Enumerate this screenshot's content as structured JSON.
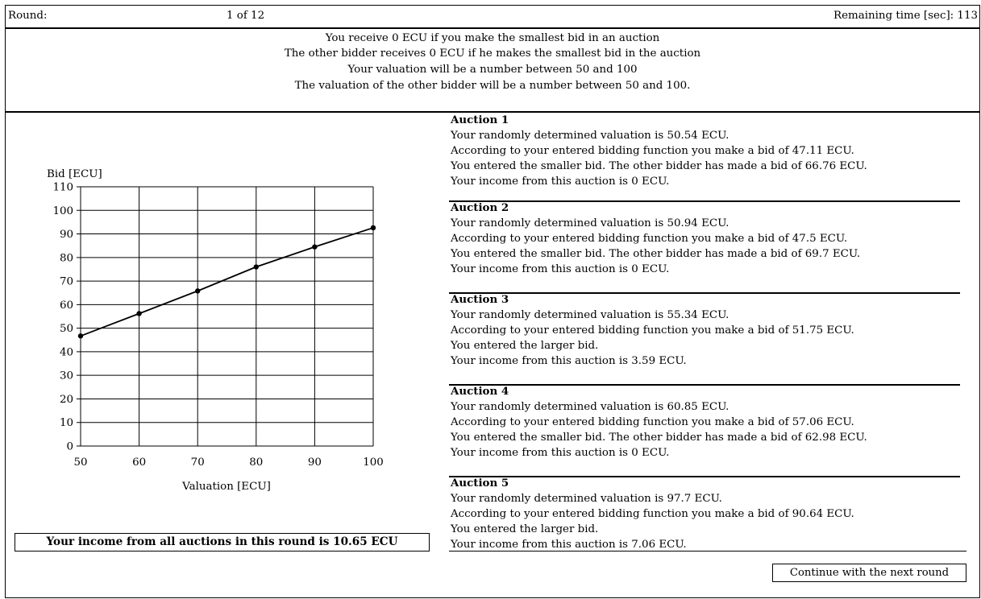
{
  "header": {
    "round_label": "Round:",
    "round_value": "1 of 12",
    "remaining_time": "Remaining time [sec]: 113"
  },
  "info_lines": [
    "You receive 0 ECU if you make the smallest bid in an auction",
    "The other bidder receives 0 ECU if he makes the smallest bid in the auction",
    "Your valuation will be a number between 50 and 100",
    "The valuation of the other bidder will be a number between 50 and 100."
  ],
  "chart_data": {
    "type": "line",
    "xlabel": "Valuation [ECU]",
    "ylabel": "Bid [ECU]",
    "xlim": [
      50,
      100
    ],
    "ylim": [
      0,
      110
    ],
    "x_ticks": [
      50,
      60,
      70,
      80,
      90,
      100
    ],
    "y_ticks": [
      0,
      10,
      20,
      30,
      40,
      50,
      60,
      70,
      80,
      90,
      100,
      110
    ],
    "grid": true,
    "x": [
      50,
      60,
      70,
      80,
      90,
      100
    ],
    "series": [
      {
        "values": [
          46.7,
          56.2,
          65.8,
          76.0,
          84.5,
          92.6
        ]
      }
    ]
  },
  "auctions": [
    {
      "title": "Auction 1",
      "valuation": "Your randomly determined valuation is 50.54 ECU.",
      "bid": "According to your entered bidding function you make a bid of 47.11 ECU.",
      "result": "You entered the smaller bid. The other bidder has made a bid of 66.76 ECU.",
      "income": "Your income from this auction is 0 ECU."
    },
    {
      "title": "Auction 2",
      "valuation": "Your randomly determined valuation is 50.94 ECU.",
      "bid": "According to your entered bidding function you make a bid of 47.5 ECU.",
      "result": "You entered the smaller bid. The other bidder has made a bid of 69.7 ECU.",
      "income": "Your income from this auction is 0 ECU."
    },
    {
      "title": "Auction 3",
      "valuation": "Your randomly determined valuation is 55.34 ECU.",
      "bid": "According to your entered bidding function you make a bid of 51.75 ECU.",
      "result": "You entered the larger bid.",
      "income": "Your income from this auction is 3.59 ECU."
    },
    {
      "title": "Auction 4",
      "valuation": "Your randomly determined valuation is 60.85 ECU.",
      "bid": "According to your entered bidding function you make a bid of 57.06 ECU.",
      "result": "You entered the smaller bid. The other bidder has made a bid of 62.98 ECU.",
      "income": "Your income from this auction is 0 ECU."
    },
    {
      "title": "Auction 5",
      "valuation": "Your randomly determined valuation is 97.7 ECU.",
      "bid": "According to your entered bidding function you make a bid of 90.64 ECU.",
      "result": "You entered the larger bid.",
      "income": "Your income from this auction is 7.06 ECU."
    }
  ],
  "total_income": "Your income from all auctions in this round is 10.65 ECU",
  "continue_button": "Continue with the next round"
}
